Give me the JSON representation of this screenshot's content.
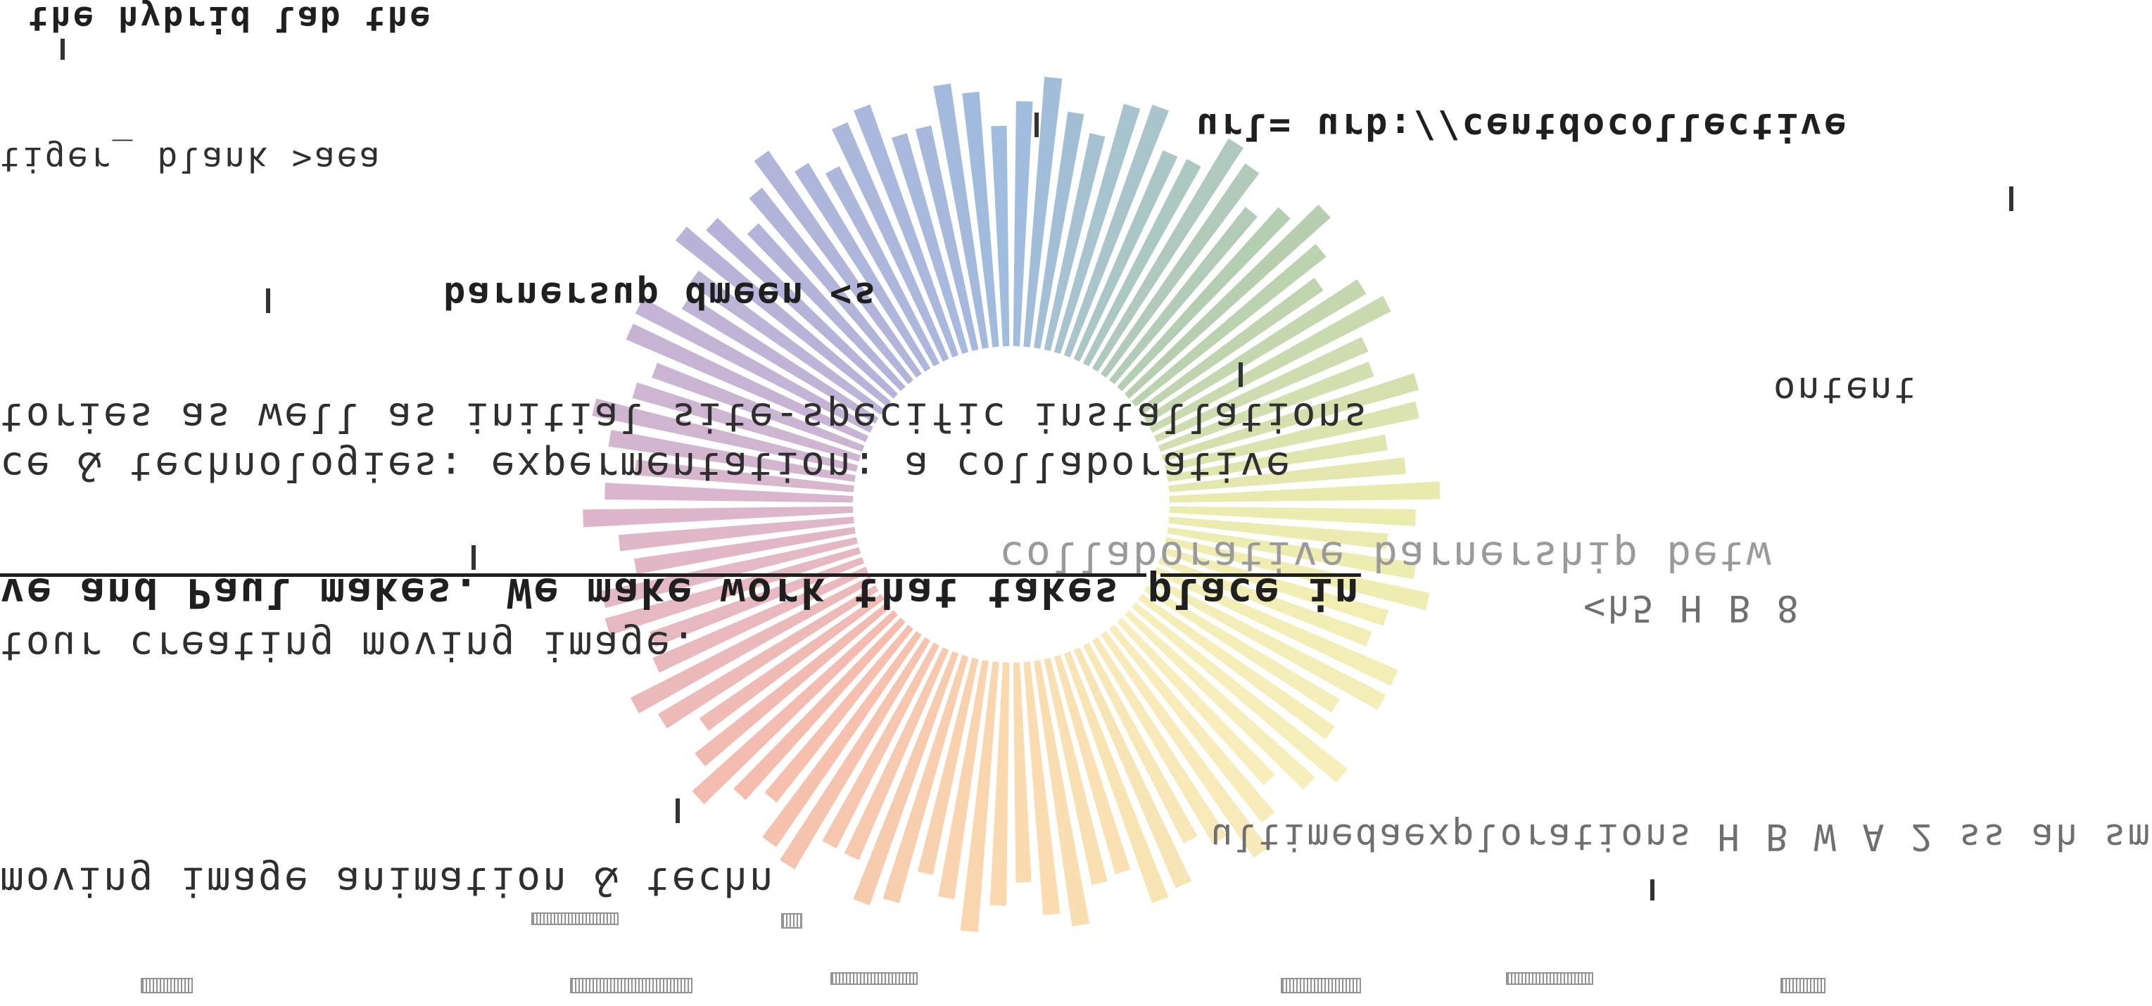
{
  "colors": {
    "ink": "#2f2f2f",
    "ink_dim": "#6f6f6f",
    "ink_faint": "#9a9a9a",
    "wheel_gradient": [
      "#8fb0d8",
      "#a9c7a1",
      "#e9e9a0",
      "#f6ecb0",
      "#f9d3a0",
      "#f3b0a0",
      "#d7a9c4",
      "#a9a6d3",
      "#8fb0d8"
    ]
  },
  "mirrored_text": {
    "line_01": "the hybrid lab the",
    "line_02": "tiger_ blank >aea",
    "line_03": "url= urb://centdocollective",
    "line_04": "barnersup dmeen <s",
    "line_05": "ontent",
    "line_06": "tories as well as initial site-specific installations",
    "line_07": "ce & technologies: expermentation: a collaborative",
    "line_08": "collaborative barnership betw",
    "line_09": "ve and Paul makes. We make work that takes place in",
    "line_10": "<h5 H B 8",
    "line_11": "tour creating moving image.",
    "line_12": "ultimedaexplorations H B W A 2 ss ah sm",
    "line_13": "moving image animation & techn"
  }
}
